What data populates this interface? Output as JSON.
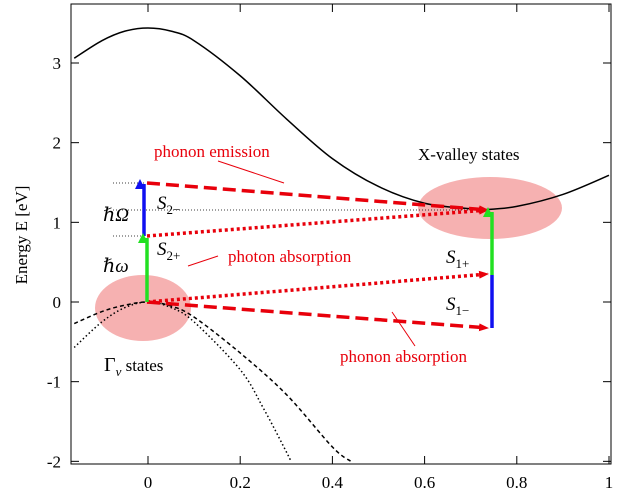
{
  "chart_data": {
    "type": "line",
    "ylabel": "Energy E [eV]",
    "xlim": [
      -0.16,
      1.0
    ],
    "ylim": [
      -2,
      3.5
    ],
    "x_ticks": [
      "0",
      "0.2",
      "0.4",
      "0.6",
      "0.8",
      "1"
    ],
    "y_ticks": [
      "3",
      "2",
      "1",
      "0",
      "-1",
      "-2"
    ],
    "series": [
      {
        "style": "solid",
        "x": [
          -0.16,
          -0.1,
          -0.05,
          0,
          0.05,
          0.1,
          0.2,
          0.3,
          0.4,
          0.5,
          0.6,
          0.7,
          0.73,
          0.8,
          0.9,
          1.0
        ],
        "y": [
          3.06,
          3.28,
          3.4,
          3.44,
          3.4,
          3.28,
          2.84,
          2.3,
          1.8,
          1.45,
          1.24,
          1.17,
          1.16,
          1.2,
          1.35,
          1.59
        ]
      },
      {
        "style": "dashed",
        "x": [
          -0.16,
          -0.1,
          -0.05,
          0,
          0.05,
          0.1,
          0.2,
          0.3,
          0.4,
          0.44
        ],
        "y": [
          -0.27,
          -0.12,
          -0.04,
          0.0,
          -0.05,
          -0.19,
          -0.64,
          -1.16,
          -1.82,
          -2.0
        ]
      },
      {
        "style": "dotted",
        "x": [
          -0.16,
          -0.1,
          -0.05,
          0,
          0.05,
          0.1,
          0.2,
          0.25,
          0.3,
          0.31
        ],
        "y": [
          -0.57,
          -0.25,
          -0.07,
          0.0,
          -0.07,
          -0.25,
          -0.85,
          -1.33,
          -1.88,
          -2.0
        ]
      }
    ]
  },
  "labels": {
    "x_valley": "X-valley states",
    "gamma_symbol": "Γ",
    "gamma_sub": "v",
    "gamma_rest": " states",
    "phonon_emission": "phonon emission",
    "photon_absorption": "photon absorption",
    "phonon_absorption": "phonon absorption",
    "hbar_Omega": "ℏΩ",
    "hbar_omega": "ℏω",
    "S_letter": "S",
    "s2minus_sub": "2−",
    "s2plus_sub": "2+",
    "s1plus_sub": "1+",
    "s1minus_sub": "1−"
  },
  "colors": {
    "transition_red": "#e8000b",
    "ellipse_fill": "#f4a3a3",
    "photon_green": "#22e022",
    "phonon_blue": "#1010f0",
    "curve": "#000000"
  }
}
